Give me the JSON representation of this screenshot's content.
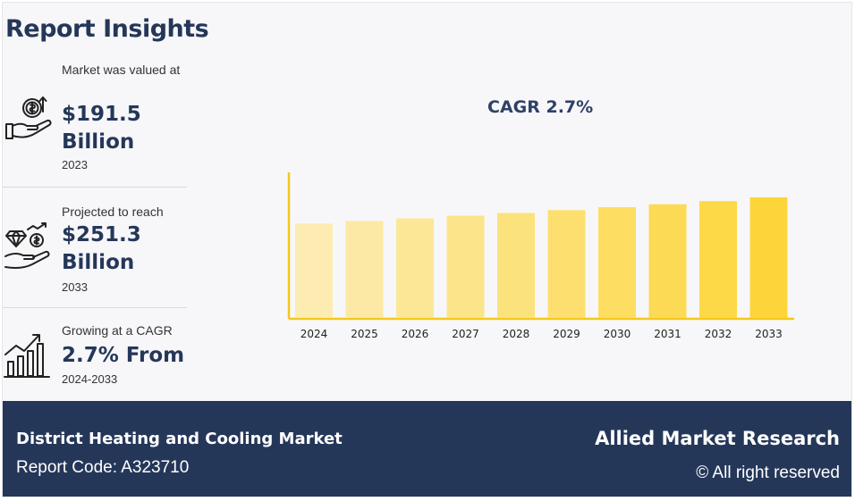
{
  "title": "Report Insights",
  "stats": [
    {
      "label": "Market was valued at",
      "value": "$191.5 Billion",
      "year": "2023",
      "icon": "money-hand-icon"
    },
    {
      "label": "Projected to reach",
      "value": "$251.3 Billion",
      "year": "2033",
      "icon": "diamond-hand-icon"
    },
    {
      "label": "Growing at a CAGR",
      "value": "2.7% From",
      "year": "2024-2033",
      "icon": "growth-chart-icon"
    }
  ],
  "chart_data": {
    "type": "bar",
    "title": "CAGR 2.7%",
    "categories": [
      "2024",
      "2025",
      "2026",
      "2027",
      "2028",
      "2029",
      "2030",
      "2031",
      "2032",
      "2033"
    ],
    "values": [
      196.7,
      202.0,
      207.5,
      213.1,
      218.8,
      224.7,
      230.8,
      237.0,
      243.4,
      251.3
    ],
    "grid": false,
    "ylabel": "",
    "xlabel": ""
  },
  "colors": {
    "brand_navy": "#253759",
    "bar_light": "#fcecb2",
    "bar_dark": "#fdd53a",
    "axis": "#f4c81c"
  },
  "footer": {
    "report_name": "District Heating and Cooling Market",
    "report_code": "Report Code: A323710",
    "company": "Allied Market Research",
    "rights": "© All right reserved"
  }
}
